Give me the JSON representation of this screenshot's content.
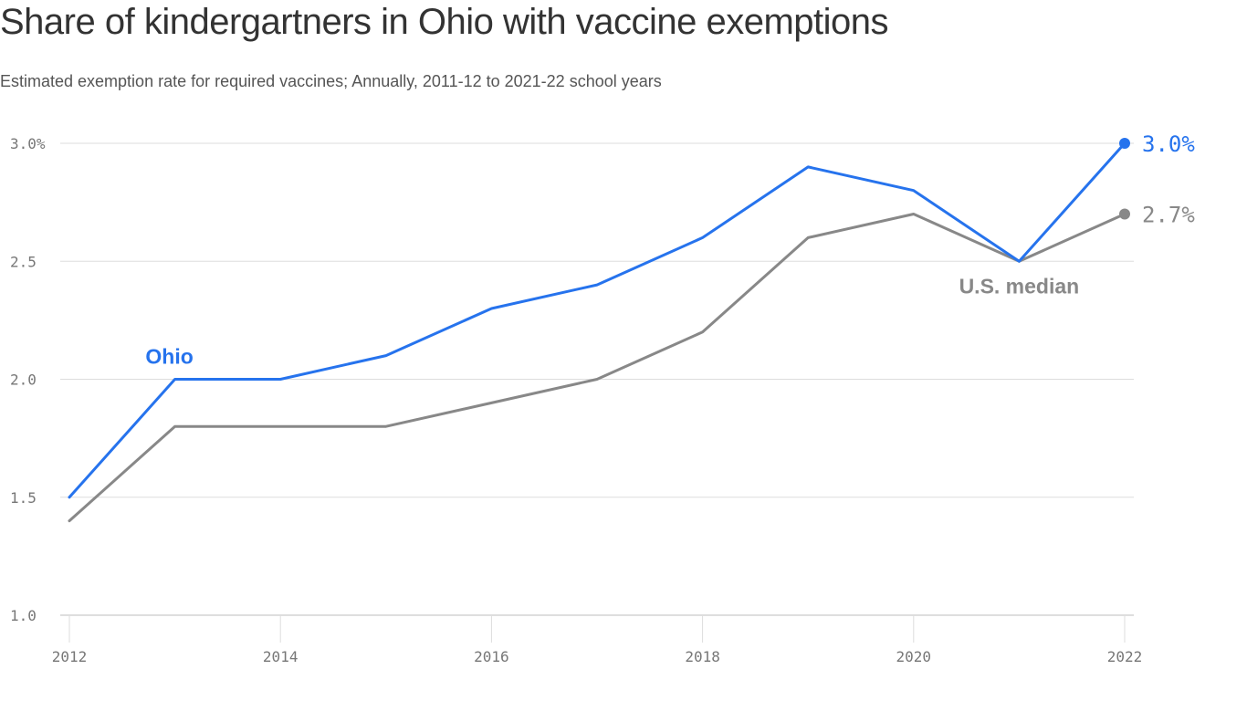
{
  "chart_data": {
    "type": "line",
    "title": "Share of kindergartners in Ohio with vaccine exemptions",
    "subtitle": "Estimated exemption rate for required vaccines; Annually, 2011-12 to 2021-22 school years",
    "x": [
      2012,
      2013,
      2014,
      2015,
      2016,
      2017,
      2018,
      2019,
      2020,
      2021,
      2022
    ],
    "xticks": [
      2012,
      2014,
      2016,
      2018,
      2020,
      2022
    ],
    "xtick_labels": [
      "2012",
      "2014",
      "2016",
      "2018",
      "2020",
      "2022"
    ],
    "yticks": [
      1.0,
      1.5,
      2.0,
      2.5,
      3.0
    ],
    "ytick_labels": [
      "1.0",
      "1.5",
      "2.0",
      "2.5",
      "3.0%"
    ],
    "ylim": [
      1.0,
      3.0
    ],
    "xlim": [
      2012,
      2022
    ],
    "grid": true,
    "series": [
      {
        "name": "Ohio",
        "color": "#2673ed",
        "values": [
          1.5,
          2.0,
          2.0,
          2.1,
          2.3,
          2.4,
          2.6,
          2.9,
          2.8,
          2.5,
          3.0
        ],
        "end_label": "3.0%"
      },
      {
        "name": "U.S. median",
        "color": "#888888",
        "values": [
          1.4,
          1.8,
          1.8,
          1.8,
          1.9,
          2.0,
          2.2,
          2.6,
          2.7,
          2.5,
          2.7
        ],
        "end_label": "2.7%"
      }
    ]
  }
}
